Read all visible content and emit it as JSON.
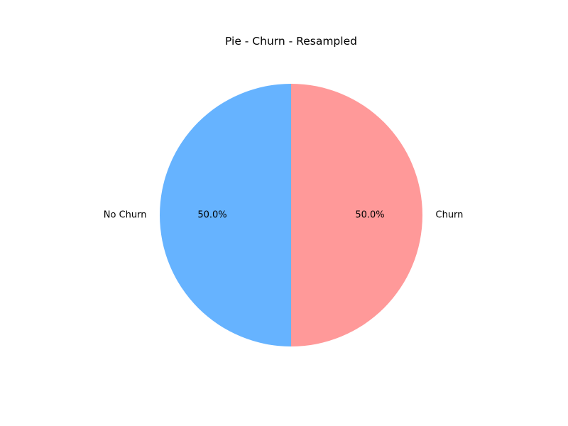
{
  "chart_data": {
    "type": "pie",
    "title": "Pie - Churn - Resampled",
    "slices": [
      {
        "label": "Churn",
        "value": 50.0,
        "pct_label": "50.0%",
        "color": "#ff9999"
      },
      {
        "label": "No Churn",
        "value": 50.0,
        "pct_label": "50.0%",
        "color": "#66b3ff"
      }
    ],
    "start_angle_deg": 90,
    "direction": "clockwise",
    "legend": "none"
  }
}
